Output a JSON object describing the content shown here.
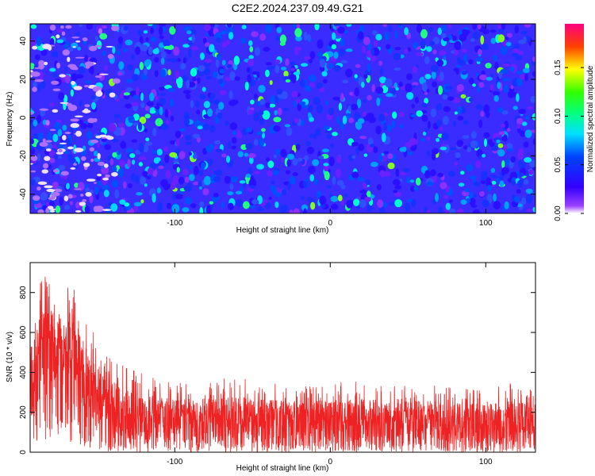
{
  "figure": {
    "title": "C2E2.2024.237.09.49.G21"
  },
  "chart_data": [
    {
      "type": "heatmap",
      "xlabel": "Height of straight line (km)",
      "ylabel": "Frequency (Hz)",
      "xlim": [
        -193,
        132
      ],
      "ylim": [
        -50,
        49
      ],
      "xticks": [
        -100,
        0,
        100
      ],
      "yticks": [
        -40,
        -20,
        0,
        20,
        40
      ],
      "colorbar": {
        "label": "Normalized spectral amplitude",
        "range": [
          0.0,
          0.195
        ],
        "ticks": [
          0.0,
          0.05,
          0.1,
          0.15
        ],
        "tick_labels": [
          "0.00",
          "0.05",
          "0.10",
          "0.15"
        ],
        "colormap": [
          "#7f00ff",
          "#0000ff",
          "#00ffff",
          "#00ff00",
          "#ffff00",
          "#ff0000",
          "#ff00ff"
        ]
      },
      "description": "Dense speckle of mostly blue/violet values (~0.02-0.06) with scattered cyan/green spots (~0.08-0.12); lower-amplitude violet/white streaks near x=-160 to -150"
    },
    {
      "type": "line",
      "xlabel": "Height of straight line (km)",
      "ylabel": "SNR (10 * v/v)",
      "xlim": [
        -193,
        132
      ],
      "ylim": [
        0,
        950
      ],
      "xticks": [
        -100,
        0,
        100
      ],
      "yticks": [
        0,
        200,
        400,
        600,
        800
      ],
      "color": "#ee2222",
      "envelope": {
        "x": [
          -193,
          -185,
          -175,
          -165,
          -155,
          -145,
          -135,
          -120,
          -100,
          -80,
          -60,
          -40,
          -20,
          0,
          20,
          40,
          60,
          80,
          100,
          120,
          132
        ],
        "upper": [
          620,
          900,
          860,
          820,
          650,
          520,
          440,
          400,
          350,
          360,
          380,
          350,
          340,
          350,
          360,
          330,
          340,
          330,
          320,
          360,
          310
        ],
        "lower": [
          40,
          60,
          50,
          40,
          20,
          5,
          0,
          0,
          0,
          0,
          0,
          0,
          0,
          0,
          0,
          0,
          0,
          0,
          0,
          0,
          0
        ],
        "mean": [
          380,
          520,
          500,
          470,
          330,
          230,
          190,
          170,
          160,
          160,
          165,
          160,
          155,
          160,
          165,
          155,
          160,
          150,
          145,
          160,
          150
        ]
      },
      "legend": null
    }
  ]
}
